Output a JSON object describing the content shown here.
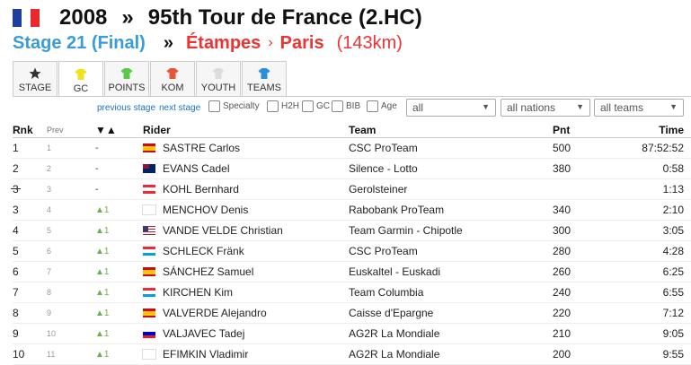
{
  "header": {
    "year": "2008",
    "separator": "»",
    "race_title": "95th Tour de France (2.HC)",
    "stage": "Stage 21 (Final)",
    "from": "Étampes",
    "route_arrow": "›",
    "to": "Paris",
    "distance": "(143km)"
  },
  "tabs": [
    {
      "label": "STAGE",
      "icon": "star-icon",
      "color": "#333333"
    },
    {
      "label": "GC",
      "icon": "jersey-icon",
      "color": "#f1e11b"
    },
    {
      "label": "POINTS",
      "icon": "jersey-icon",
      "color": "#5cc84a"
    },
    {
      "label": "KOM",
      "icon": "jersey-icon",
      "color": "#e8533a"
    },
    {
      "label": "YOUTH",
      "icon": "jersey-icon",
      "color": "#dddddd"
    },
    {
      "label": "TEAMS",
      "icon": "jersey-icon",
      "color": "#2a8fd8"
    }
  ],
  "filters": {
    "previous_stage": "previous stage",
    "next_stage": "next stage",
    "checkboxes": [
      "Specialty",
      "H2H",
      "GC",
      "BIB",
      "Age"
    ],
    "select_all": "all",
    "select_nations": "all nations",
    "select_teams": "all teams"
  },
  "columns": {
    "rnk": "Rnk",
    "prev": "Prev",
    "diff": "▼▲",
    "rider": "Rider",
    "team": "Team",
    "pnt": "Pnt",
    "time": "Time"
  },
  "rows": [
    {
      "rnk": "1",
      "prev": "1",
      "diff": "-",
      "up": false,
      "nat": "es",
      "rider": "SASTRE Carlos",
      "team": "CSC ProTeam",
      "pnt": "500",
      "time": "87:52:52"
    },
    {
      "rnk": "2",
      "prev": "2",
      "diff": "-",
      "up": false,
      "nat": "au",
      "rider": "EVANS Cadel",
      "team": "Silence - Lotto",
      "pnt": "380",
      "time": "0:58"
    },
    {
      "rnk": "3",
      "prev": "3",
      "diff": "-",
      "up": false,
      "nat": "at",
      "rider": "KOHL Bernhard",
      "team": "Gerolsteiner",
      "pnt": "",
      "time": "1:13",
      "struck": true
    },
    {
      "rnk": "3",
      "prev": "4",
      "diff": "▲1",
      "up": true,
      "nat": "ru",
      "rider": "MENCHOV Denis",
      "team": "Rabobank ProTeam",
      "pnt": "340",
      "time": "2:10"
    },
    {
      "rnk": "4",
      "prev": "5",
      "diff": "▲1",
      "up": true,
      "nat": "us",
      "rider": "VANDE VELDE Christian",
      "team": "Team Garmin - Chipotle",
      "pnt": "300",
      "time": "3:05"
    },
    {
      "rnk": "5",
      "prev": "6",
      "diff": "▲1",
      "up": true,
      "nat": "lu",
      "rider": "SCHLECK Fränk",
      "team": "CSC ProTeam",
      "pnt": "280",
      "time": "4:28"
    },
    {
      "rnk": "6",
      "prev": "7",
      "diff": "▲1",
      "up": true,
      "nat": "es",
      "rider": "SÁNCHEZ Samuel",
      "team": "Euskaltel - Euskadi",
      "pnt": "260",
      "time": "6:25"
    },
    {
      "rnk": "7",
      "prev": "8",
      "diff": "▲1",
      "up": true,
      "nat": "lu",
      "rider": "KIRCHEN Kim",
      "team": "Team Columbia",
      "pnt": "240",
      "time": "6:55"
    },
    {
      "rnk": "8",
      "prev": "9",
      "diff": "▲1",
      "up": true,
      "nat": "es",
      "rider": "VALVERDE Alejandro",
      "team": "Caisse d'Epargne",
      "pnt": "220",
      "time": "7:12"
    },
    {
      "rnk": "9",
      "prev": "10",
      "diff": "▲1",
      "up": true,
      "nat": "si",
      "rider": "VALJAVEC Tadej",
      "team": "AG2R La Mondiale",
      "pnt": "210",
      "time": "9:05"
    },
    {
      "rnk": "10",
      "prev": "11",
      "diff": "▲1",
      "up": true,
      "nat": "ru",
      "rider": "EFIMKIN Vladimir",
      "team": "AG2R La Mondiale",
      "pnt": "200",
      "time": "9:55"
    }
  ]
}
